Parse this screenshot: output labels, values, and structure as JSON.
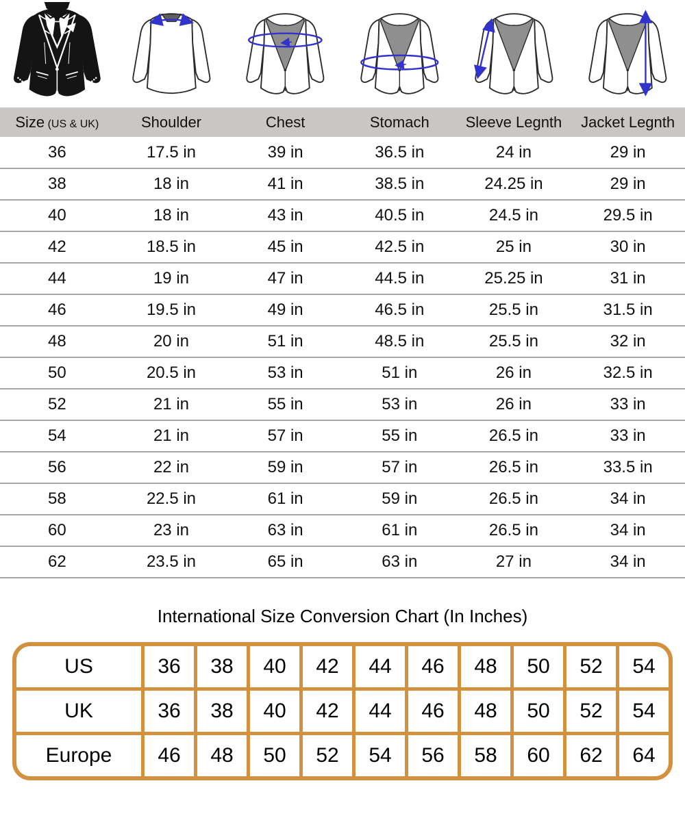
{
  "colors": {
    "header_bg": "#c9c6c3",
    "row_line": "#a9a5a2",
    "orange": "#d2913e",
    "measure_blue": "#3232cd",
    "lapel_gray": "#8f8f8f",
    "outline": "#2b2b2b"
  },
  "figures": [
    {
      "name": "tuxedo-front-illustration"
    },
    {
      "name": "shoulder-measurement-back-view"
    },
    {
      "name": "chest-measurement-front-view"
    },
    {
      "name": "stomach-measurement-front-view"
    },
    {
      "name": "sleeve-length-measurement-front-view"
    },
    {
      "name": "jacket-length-measurement-front-view"
    }
  ],
  "size_table": {
    "columns": [
      {
        "label": "Size",
        "sub": "(US & UK)"
      },
      {
        "label": "Shoulder"
      },
      {
        "label": "Chest"
      },
      {
        "label": "Stomach"
      },
      {
        "label": "Sleeve Legnth"
      },
      {
        "label": "Jacket Legnth"
      }
    ],
    "rows": [
      [
        "36",
        "17.5 in",
        "39 in",
        "36.5 in",
        "24 in",
        "29 in"
      ],
      [
        "38",
        "18 in",
        "41 in",
        "38.5 in",
        "24.25 in",
        "29 in"
      ],
      [
        "40",
        "18 in",
        "43 in",
        "40.5 in",
        "24.5 in",
        "29.5 in"
      ],
      [
        "42",
        "18.5 in",
        "45 in",
        "42.5 in",
        "25 in",
        "30 in"
      ],
      [
        "44",
        "19 in",
        "47 in",
        "44.5 in",
        "25.25 in",
        "31 in"
      ],
      [
        "46",
        "19.5 in",
        "49 in",
        "46.5 in",
        "25.5 in",
        "31.5 in"
      ],
      [
        "48",
        "20 in",
        "51 in",
        "48.5 in",
        "25.5 in",
        "32 in"
      ],
      [
        "50",
        "20.5 in",
        "53 in",
        "51 in",
        "26 in",
        "32.5 in"
      ],
      [
        "52",
        "21 in",
        "55 in",
        "53 in",
        "26 in",
        "33 in"
      ],
      [
        "54",
        "21 in",
        "57 in",
        "55 in",
        "26.5 in",
        "33 in"
      ],
      [
        "56",
        "22 in",
        "59 in",
        "57 in",
        "26.5 in",
        "33.5 in"
      ],
      [
        "58",
        "22.5 in",
        "61 in",
        "59 in",
        "26.5 in",
        "34 in"
      ],
      [
        "60",
        "23 in",
        "63 in",
        "61 in",
        "26.5 in",
        "34 in"
      ],
      [
        "62",
        "23.5 in",
        "65 in",
        "63 in",
        "27 in",
        "34 in"
      ]
    ]
  },
  "conversion": {
    "title": "International Size Conversion Chart (In Inches)",
    "rows": [
      {
        "label": "US",
        "values": [
          "36",
          "38",
          "40",
          "42",
          "44",
          "46",
          "48",
          "50",
          "52",
          "54"
        ]
      },
      {
        "label": "UK",
        "values": [
          "36",
          "38",
          "40",
          "42",
          "44",
          "46",
          "48",
          "50",
          "52",
          "54"
        ]
      },
      {
        "label": "Europe",
        "values": [
          "46",
          "48",
          "50",
          "52",
          "54",
          "56",
          "58",
          "60",
          "62",
          "64"
        ]
      }
    ]
  }
}
